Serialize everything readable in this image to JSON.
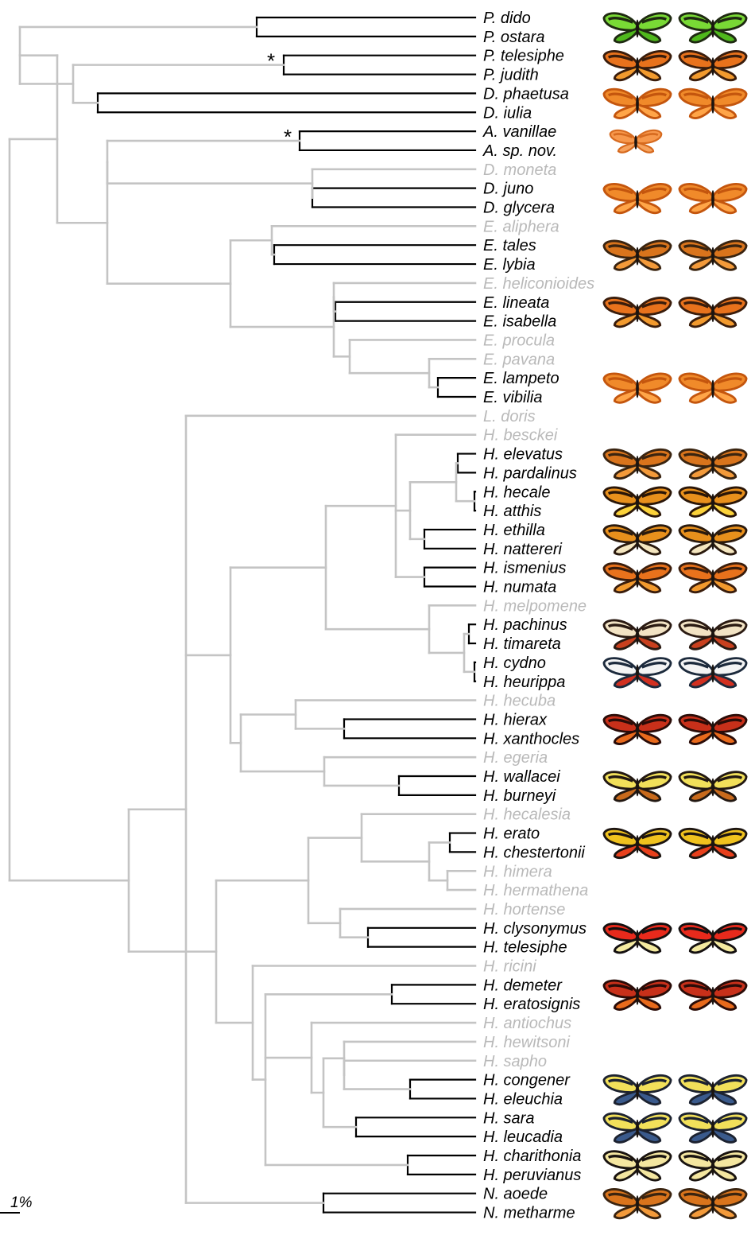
{
  "colors": {
    "pair_branch": "#000000",
    "other_branch": "#c4c4c4",
    "pair_label": "#000000",
    "other_label": "#b9b9b9"
  },
  "scale_bar": {
    "label": "1%"
  },
  "marker_symbol": "*",
  "taxa": [
    {
      "name": "P. dido",
      "pair": true,
      "wings": "green"
    },
    {
      "name": "P. ostara",
      "pair": true
    },
    {
      "name": "P. telesiphe",
      "pair": true,
      "wings": "tiger",
      "marked": true
    },
    {
      "name": "P. judith",
      "pair": true
    },
    {
      "name": "D. phaetusa",
      "pair": true,
      "wings": "orange"
    },
    {
      "name": "D. iulia",
      "pair": true
    },
    {
      "name": "A. vanillae",
      "pair": true,
      "wings": "orange-single",
      "marked": true
    },
    {
      "name": "A. sp. nov.",
      "pair": true
    },
    {
      "name": "D. moneta",
      "pair": false
    },
    {
      "name": "D. juno",
      "pair": true,
      "wings": "orange"
    },
    {
      "name": "D. glycera",
      "pair": true
    },
    {
      "name": "E. aliphera",
      "pair": false
    },
    {
      "name": "E. tales",
      "pair": true,
      "wings": "rayed"
    },
    {
      "name": "E. lybia",
      "pair": true
    },
    {
      "name": "E. heliconioides",
      "pair": false
    },
    {
      "name": "E. lineata",
      "pair": true,
      "wings": "tiger"
    },
    {
      "name": "E. isabella",
      "pair": true
    },
    {
      "name": "E. procula",
      "pair": false
    },
    {
      "name": "E. pavana",
      "pair": false
    },
    {
      "name": "E. lampeto",
      "pair": true,
      "wings": "orange"
    },
    {
      "name": "E. vibilia",
      "pair": true
    },
    {
      "name": "L. doris",
      "pair": false
    },
    {
      "name": "H. besckei",
      "pair": false
    },
    {
      "name": "H. elevatus",
      "pair": true,
      "wings": "rayed"
    },
    {
      "name": "H. pardalinus",
      "pair": true
    },
    {
      "name": "H. hecale",
      "pair": true,
      "wings": "tiger-dark"
    },
    {
      "name": "H. atthis",
      "pair": true
    },
    {
      "name": "H. ethilla",
      "pair": true,
      "wings": "tiger-cream"
    },
    {
      "name": "H. nattereri",
      "pair": true
    },
    {
      "name": "H. ismenius",
      "pair": true,
      "wings": "tiger"
    },
    {
      "name": "H. numata",
      "pair": true
    },
    {
      "name": "H. melpomene",
      "pair": false
    },
    {
      "name": "H. pachinus",
      "pair": true,
      "wings": "cream"
    },
    {
      "name": "H. timareta",
      "pair": true
    },
    {
      "name": "H. cydno",
      "pair": true,
      "wings": "blue"
    },
    {
      "name": "H. heurippa",
      "pair": true
    },
    {
      "name": "H. hecuba",
      "pair": false
    },
    {
      "name": "H. hierax",
      "pair": true,
      "wings": "red"
    },
    {
      "name": "H. xanthocles",
      "pair": true
    },
    {
      "name": "H. egeria",
      "pair": false
    },
    {
      "name": "H. wallacei",
      "pair": true,
      "wings": "dark-yellow"
    },
    {
      "name": "H. burneyi",
      "pair": true
    },
    {
      "name": "H. hecalesia",
      "pair": false
    },
    {
      "name": "H. erato",
      "pair": true,
      "wings": "postman"
    },
    {
      "name": "H. chestertonii",
      "pair": true
    },
    {
      "name": "H. himera",
      "pair": false
    },
    {
      "name": "H. hermathena",
      "pair": false
    },
    {
      "name": "H. hortense",
      "pair": false
    },
    {
      "name": "H. clysonymus",
      "pair": true,
      "wings": "redband"
    },
    {
      "name": "H. telesiphe",
      "pair": true
    },
    {
      "name": "H. ricini",
      "pair": false
    },
    {
      "name": "H. demeter",
      "pair": true,
      "wings": "red"
    },
    {
      "name": "H. eratosignis",
      "pair": true
    },
    {
      "name": "H. antiochus",
      "pair": false
    },
    {
      "name": "H. hewitsoni",
      "pair": false
    },
    {
      "name": "H. sapho",
      "pair": false
    },
    {
      "name": "H. congener",
      "pair": true,
      "wings": "blue-yellow"
    },
    {
      "name": "H. eleuchia",
      "pair": true
    },
    {
      "name": "H. sara",
      "pair": true,
      "wings": "blue-yellow"
    },
    {
      "name": "H. leucadia",
      "pair": true
    },
    {
      "name": "H. charithonia",
      "pair": true,
      "wings": "zebra"
    },
    {
      "name": "H. peruvianus",
      "pair": true
    },
    {
      "name": "N. aoede",
      "pair": true,
      "wings": "rayed"
    },
    {
      "name": "N. metharme",
      "pair": true
    }
  ],
  "tree_newick": "((((P.dido,P.ostara),((P.telesiphe,P.judith),(D.phaetusa,D.iulia))),(((A.vanillae,A.sp.nov.),(D.moneta,(D.juno,D.glycera))),((E.aliphera,(E.tales,E.lybia)),((E.heliconioides,(E.lineata,E.isabella)),(E.procula,(E.pavana,(E.lampeto,E.vibilia))))))),(L.doris,(((H.besckei,((H.elevatus,H.pardalinus),(H.hecale,H.atthis)),(H.ethilla,H.nattereri),(H.ismenius,H.numata)),(H.melpomene,((H.pachinus,H.timareta),(H.cydno,H.heurippa)))),((H.hecuba,(H.hierax,H.xanthocles)),(H.egeria,(H.wallacei,H.burneyi)))),((H.hecalesia,(H.erato,H.chestertonii),(H.himera,H.hermathena)),(H.hortense,(H.clysonymus,H.telesiphe))),(H.ricini,((H.demeter,H.eratosignis),(H.antiochus,(H.hewitsoni,(H.sapho,(H.congener,H.eleuchia)),(H.sara,H.leucadia))),(H.charithonia,H.peruvianus))),(N.aoede,N.metharme)))"
}
